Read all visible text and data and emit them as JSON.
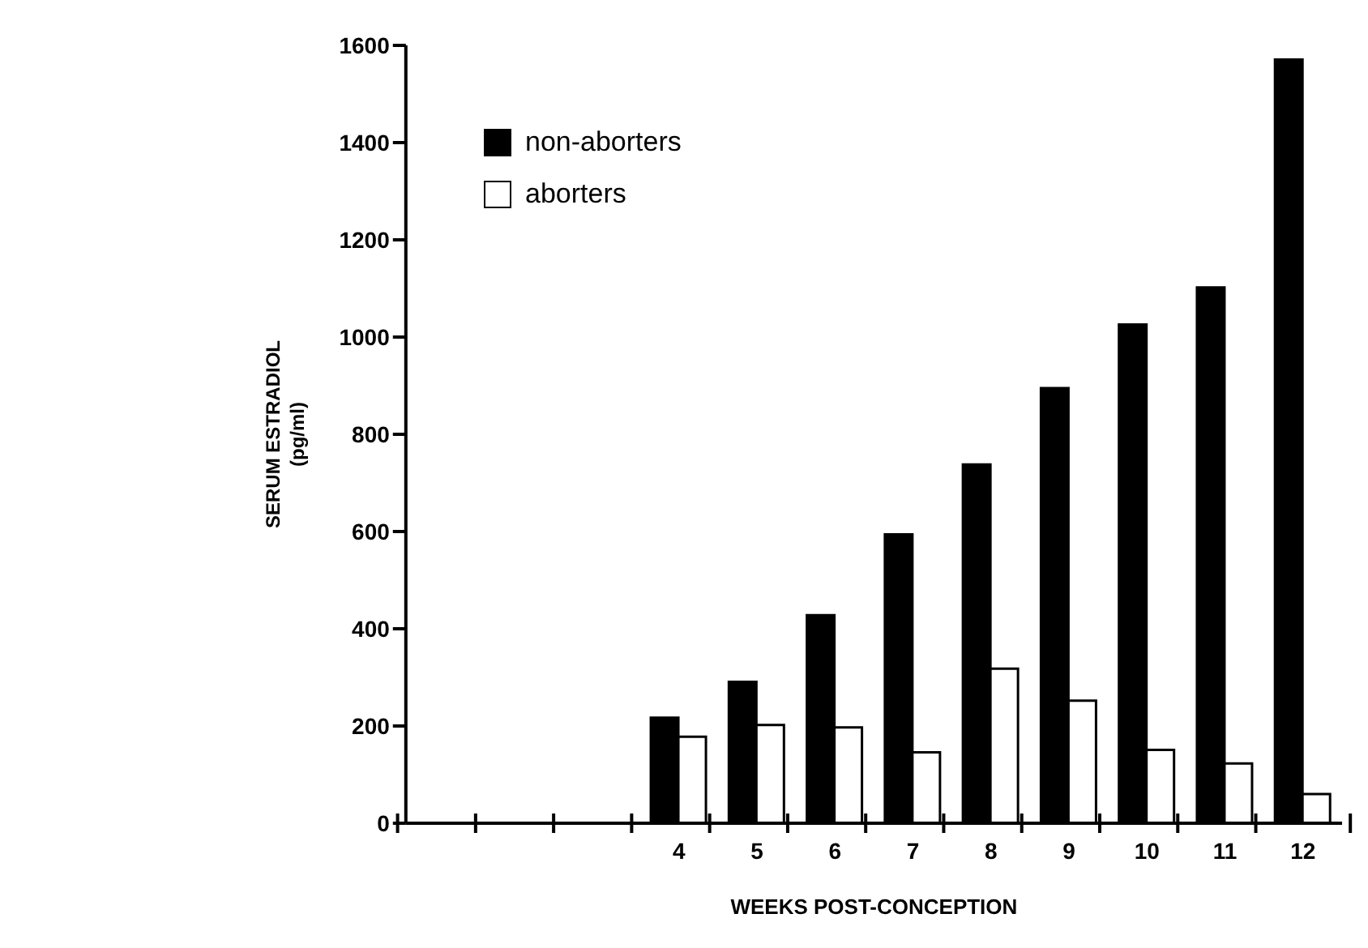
{
  "chart_data": {
    "type": "bar",
    "xlabel": "WEEKS POST-CONCEPTION",
    "ylabel": "SERUM ESTRADIOL (pg/ml)",
    "categories": [
      null,
      null,
      null,
      "4",
      "5",
      "6",
      "7",
      "8",
      "9",
      "10",
      "11",
      "12"
    ],
    "series": [
      {
        "name": "non-aborters",
        "color": "#000000",
        "values": [
          null,
          null,
          null,
          217,
          291,
          428,
          594,
          738,
          895,
          1026,
          1102,
          1571
        ]
      },
      {
        "name": "aborters",
        "color": "#ffffff",
        "values": [
          null,
          null,
          null,
          178,
          202,
          197,
          146,
          318,
          252,
          151,
          123,
          60
        ]
      }
    ],
    "ylim": [
      0,
      1600
    ],
    "yticks": [
      0,
      200,
      400,
      600,
      800,
      1000,
      1200,
      1400,
      1600
    ],
    "legend": "top left"
  }
}
